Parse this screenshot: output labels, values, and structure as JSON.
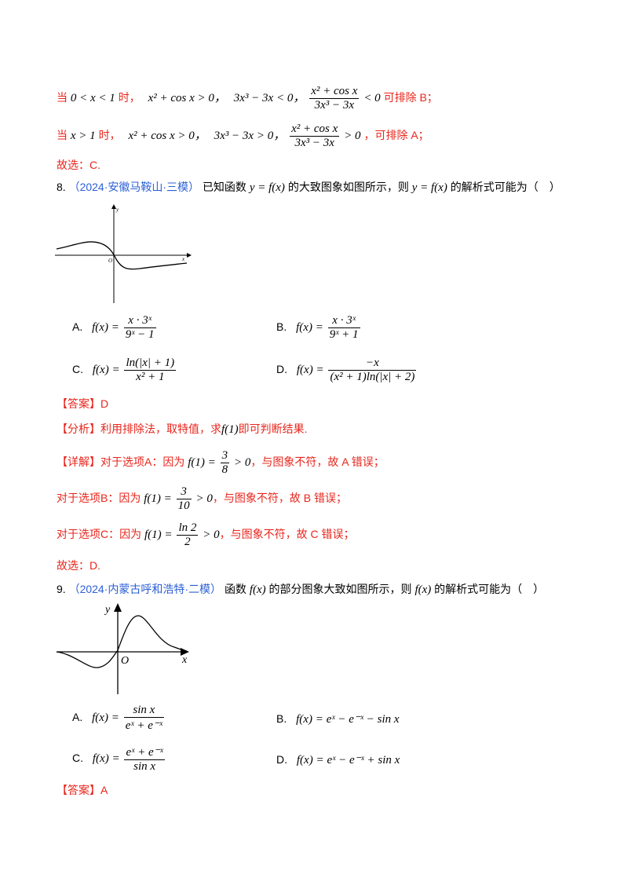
{
  "explanation_prev": {
    "case1": {
      "prefix": "当",
      "condition": "0 < x < 1",
      "suffix": "时，",
      "expr1": "x² + cos x > 0，",
      "expr2": "3x³ − 3x < 0，",
      "frac_num": "x² + cos x",
      "frac_den": "3x³ − 3x",
      "rel": "< 0",
      "result": "可排除 B；"
    },
    "case2": {
      "prefix": "当",
      "condition": "x > 1",
      "suffix": "时，",
      "expr1": "x² + cos x > 0，",
      "expr2": "3x³ − 3x > 0，",
      "frac_num": "x² + cos x",
      "frac_den": "3x³ − 3x",
      "rel": "> 0",
      "result": "，可排除 A；"
    },
    "conclusion": "故选：C."
  },
  "q8": {
    "number": "8.",
    "source": "（2024·安徽马鞍山·三模）",
    "stem_a": "已知函数",
    "stem_func": "y = f(x)",
    "stem_b": "的大致图象如图所示，则",
    "stem_func2": "y = f(x)",
    "stem_c": "的解析式可能为（　）",
    "graph": {
      "x_label": "x",
      "y_label": "y",
      "origin_label": "O"
    },
    "options": [
      {
        "label": "A.",
        "lhs": "f(x) =",
        "num": "x · 3ˣ",
        "den": "9ˣ − 1"
      },
      {
        "label": "B.",
        "lhs": "f(x) =",
        "num": "x · 3ˣ",
        "den": "9ˣ + 1"
      },
      {
        "label": "C.",
        "lhs": "f(x) =",
        "num": "ln(|x| + 1)",
        "den": "x² + 1"
      },
      {
        "label": "D.",
        "lhs": "f(x) =",
        "num": "−x",
        "den": "(x² + 1)ln(|x| + 2)"
      }
    ],
    "answer_tag": "【答案】",
    "answer": "D",
    "analysis_tag": "【分析】",
    "analysis_a": "利用排除法，取特值，求",
    "analysis_func": "f(1)",
    "analysis_b": "即可判断结果.",
    "detail_tag": "【详解】",
    "detail_a": {
      "text1": "对于选项A：因为",
      "lhs": "f(1) =",
      "num": "3",
      "den": "8",
      "rel": "> 0",
      "text2": "，与图象不符，故 A 错误；"
    },
    "detail_b": {
      "text1": "对于选项B：因为",
      "lhs": "f(1) =",
      "num": "3",
      "den": "10",
      "rel": "> 0",
      "text2": "，与图象不符，故 B 错误；"
    },
    "detail_c": {
      "text1": "对于选项C：因为",
      "lhs": "f(1) =",
      "num": "ln 2",
      "den": "2",
      "rel": "> 0",
      "text2": "，与图象不符，故 C 错误；"
    },
    "conclusion": "故选：D."
  },
  "q9": {
    "number": "9.",
    "source": "（2024·内蒙古呼和浩特·二模）",
    "stem_a": "函数",
    "stem_func": "f(x)",
    "stem_b": "的部分图象大致如图所示，则",
    "stem_func2": "f(x)",
    "stem_c": "的解析式可能为（　）",
    "graph": {
      "x_label": "x",
      "y_label": "y",
      "origin_label": "O"
    },
    "options": [
      {
        "label": "A.",
        "lhs": "f(x) =",
        "num": "sin x",
        "den": "eˣ + e⁻ˣ",
        "inline": ""
      },
      {
        "label": "B.",
        "lhs": "f(x) =",
        "num": "",
        "den": "",
        "inline": "eˣ − e⁻ˣ − sin x"
      },
      {
        "label": "C.",
        "lhs": "f(x) =",
        "num": "eˣ + e⁻ˣ",
        "den": "sin x",
        "inline": ""
      },
      {
        "label": "D.",
        "lhs": "f(x) =",
        "num": "",
        "den": "",
        "inline": "eˣ − e⁻ˣ + sin x"
      }
    ],
    "answer_tag": "【答案】",
    "answer": "A"
  },
  "colors": {
    "red": "#e8261d",
    "blue": "#2c5fd6",
    "black": "#000000"
  }
}
